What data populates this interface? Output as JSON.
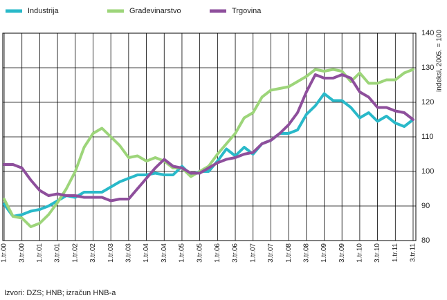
{
  "chart_data": {
    "type": "line",
    "categories": [
      "1.tr.00",
      null,
      "3.tr.00",
      null,
      "1.tr.01",
      null,
      "3.tr.01",
      null,
      "1.tr.02",
      null,
      "3.tr.02",
      null,
      "1.tr.03",
      null,
      "3.tr.03",
      null,
      "1.tr.04",
      null,
      "3.tr.04",
      null,
      "1.tr.05",
      null,
      "3.tr.05",
      null,
      "1.tr.06",
      null,
      "3.tr.06",
      null,
      "1.tr.07",
      null,
      "3.tr.07",
      null,
      "1.tr.08",
      null,
      "3.tr.08",
      null,
      "1.tr.09",
      null,
      "3.tr.09",
      null,
      "1.tr.10",
      null,
      "3.tr.10",
      null,
      "1.tr.11",
      null,
      "3.tr.11"
    ],
    "series": [
      {
        "name": "Industrija",
        "color": "#29b9c9",
        "values": [
          90.5,
          87,
          87.5,
          88.5,
          89,
          90,
          91.5,
          93,
          92.5,
          94,
          94,
          94,
          95.5,
          97,
          98,
          99,
          99,
          99.5,
          99,
          99,
          101.5,
          99,
          100,
          100,
          103,
          106.5,
          104.5,
          107,
          105,
          108,
          109,
          111,
          111,
          112,
          116.5,
          119,
          122.5,
          120.5,
          120.5,
          118.5,
          115.5,
          117,
          114.5,
          116,
          114,
          113,
          115
        ]
      },
      {
        "name": "Građevinarstvo",
        "color": "#9dd57a",
        "values": [
          92,
          87,
          86.5,
          84,
          85,
          87.5,
          91,
          95,
          100,
          107,
          111,
          112.5,
          110,
          107.5,
          104,
          104.5,
          103,
          104,
          103,
          101,
          101,
          98.5,
          100,
          101.5,
          105,
          108,
          111,
          115.5,
          117,
          121.5,
          123.5,
          124,
          124.5,
          126,
          127.5,
          129.5,
          129,
          129.5,
          129,
          126,
          128.5,
          125.5,
          125.5,
          126.5,
          126.5,
          128.5,
          129.5
        ]
      },
      {
        "name": "Trgovina",
        "color": "#8e4f9c",
        "values": [
          102,
          102,
          101,
          97.5,
          94.5,
          93,
          93.5,
          93,
          93,
          92.5,
          92.5,
          92.5,
          91.5,
          92,
          92,
          95,
          98,
          101,
          103.5,
          101.5,
          101,
          99.5,
          99.5,
          101,
          102.5,
          103.5,
          104,
          105,
          105.5,
          108,
          109,
          111,
          113.5,
          117,
          123,
          128,
          127,
          127,
          128,
          127,
          123,
          121.5,
          118.5,
          118.5,
          117.5,
          117,
          115
        ]
      }
    ],
    "ylim": [
      80,
      140
    ],
    "yticks": [
      80,
      90,
      100,
      110,
      120,
      130,
      140
    ],
    "y_axis_label": "indeksi, 2005. = 100",
    "source": "Izvori: DZS; HNB; izračun HNB-a",
    "grid": true
  }
}
